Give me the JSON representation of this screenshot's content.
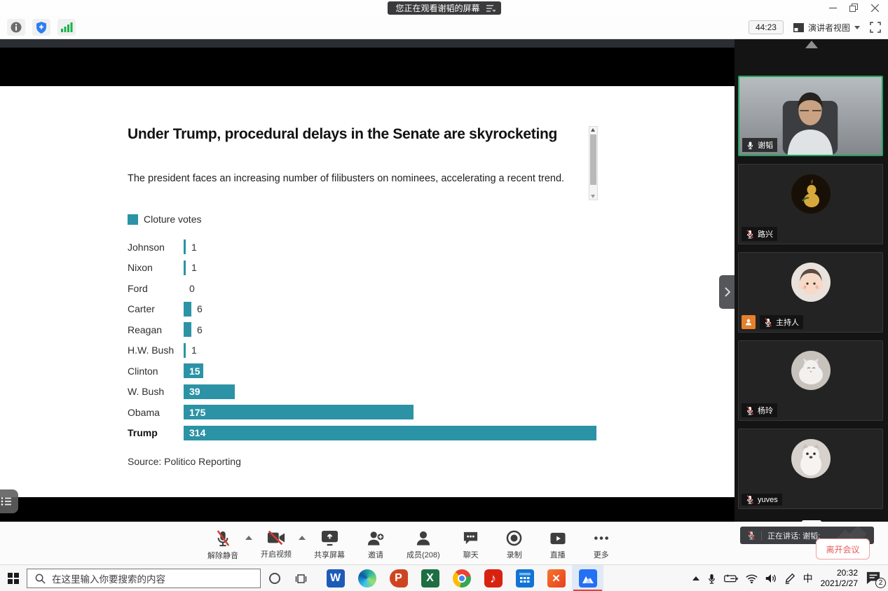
{
  "window": {
    "title_pill": "您正在观看谢韬的屏幕"
  },
  "topbar": {
    "timer": "44:23",
    "view_mode": "演讲者视图"
  },
  "chart_data": {
    "type": "bar",
    "orientation": "horizontal",
    "title": "Under Trump, procedural delays in the Senate are skyrocketing",
    "subtitle": "The president faces an increasing number of filibusters on nominees, accelerating a recent trend.",
    "legend": [
      "Cloture votes"
    ],
    "categories": [
      "Johnson",
      "Nixon",
      "Ford",
      "Carter",
      "Reagan",
      "H.W. Bush",
      "Clinton",
      "W. Bush",
      "Obama",
      "Trump"
    ],
    "values": [
      1,
      1,
      0,
      6,
      6,
      1,
      15,
      39,
      175,
      314
    ],
    "emphasized_category": "Trump",
    "value_label_inside_threshold": 15,
    "xlim": [
      0,
      314
    ],
    "bar_color": "#2b93a5",
    "source": "Source: Politico Reporting"
  },
  "sidebar": {
    "participants": [
      {
        "name": "谢韬",
        "mic": "on",
        "active_speaker": true,
        "avatar": "man-webcam-video"
      },
      {
        "name": "路兴",
        "mic": "muted",
        "avatar": "gourd-avatar"
      },
      {
        "name": "主持人",
        "mic": "muted",
        "host": true,
        "avatar": "child-avatar"
      },
      {
        "name": "杨玲",
        "mic": "muted",
        "avatar": "cat-avatar"
      },
      {
        "name": "yuves",
        "mic": "muted",
        "avatar": "dog-avatar"
      }
    ],
    "speaking_indicator": "正在讲话: 谢韬;"
  },
  "controls": {
    "buttons": [
      {
        "label": "解除静音",
        "icon": "mic-muted-icon",
        "has_caret": true
      },
      {
        "label": "开启视频",
        "icon": "camera-off-icon",
        "has_caret": true
      },
      {
        "label": "共享屏幕",
        "icon": "share-screen-icon"
      },
      {
        "label": "邀请",
        "icon": "invite-icon"
      },
      {
        "label": "成员(208)",
        "icon": "members-icon"
      },
      {
        "label": "聊天",
        "icon": "chat-icon"
      },
      {
        "label": "录制",
        "icon": "record-icon"
      },
      {
        "label": "直播",
        "icon": "live-icon"
      },
      {
        "label": "更多",
        "icon": "more-icon"
      }
    ],
    "leave_button": "离开会议"
  },
  "taskbar": {
    "search_placeholder": "在这里输入你要搜索的内容",
    "apps": [
      {
        "name": "word",
        "glyph": "W",
        "color": "#1e5bb8"
      },
      {
        "name": "edge",
        "glyph": "",
        "color": ""
      },
      {
        "name": "powerpoint",
        "glyph": "P",
        "color": "#cf4420"
      },
      {
        "name": "excel",
        "glyph": "X",
        "color": "#1d6f42"
      },
      {
        "name": "chrome",
        "glyph": "",
        "color": ""
      },
      {
        "name": "netease-music",
        "glyph": "♪",
        "color": "#d7220f"
      },
      {
        "name": "calendar",
        "glyph": "",
        "color": "#1074d6"
      },
      {
        "name": "xmind",
        "glyph": "✕",
        "color": "#ee5d2d"
      },
      {
        "name": "tencent-meeting",
        "glyph": "",
        "color": "#2470f4"
      }
    ],
    "active_app": "tencent-meeting",
    "tray": {
      "ime": "中",
      "time": "20:32",
      "date": "2021/2/27",
      "notification_count": "2"
    }
  }
}
